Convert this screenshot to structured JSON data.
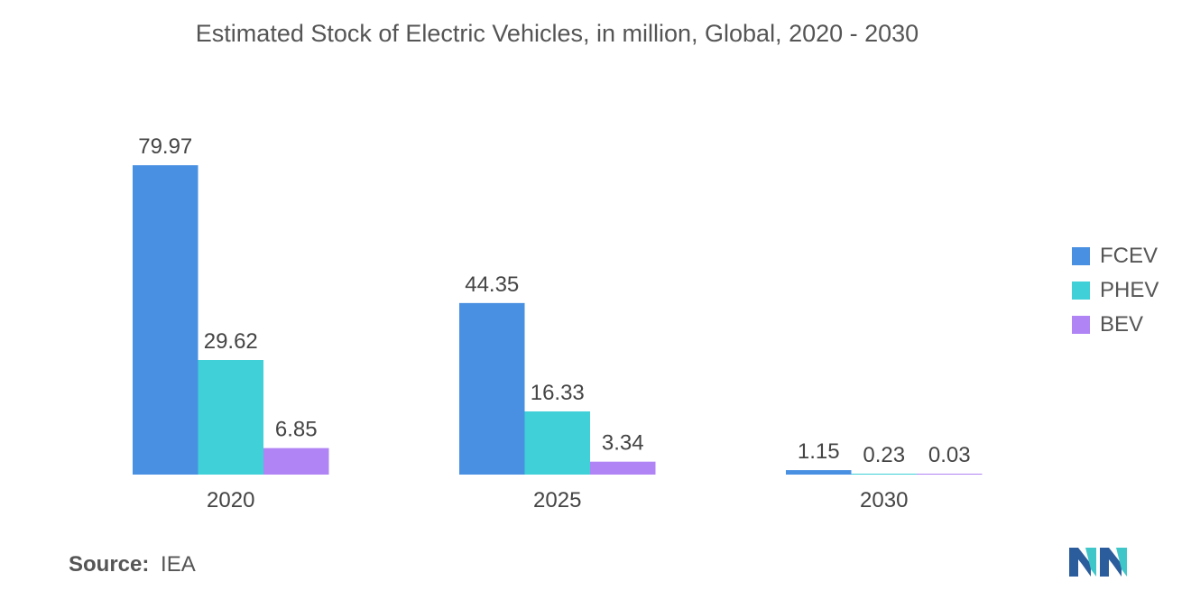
{
  "chart_data": {
    "type": "bar",
    "title": "Estimated Stock of Electric Vehicles, in million, Global, 2020 - 2030",
    "categories": [
      "2020",
      "2025",
      "2030"
    ],
    "series": [
      {
        "name": "FCEV",
        "values": [
          79.97,
          44.35,
          1.15
        ],
        "labels": [
          "79.97",
          "44.35",
          "1.15"
        ],
        "color": "#4a90e2"
      },
      {
        "name": "PHEV",
        "values": [
          29.62,
          16.33,
          0.23
        ],
        "labels": [
          "29.62",
          "16.33",
          "0.23"
        ],
        "color": "#3fd0d8"
      },
      {
        "name": "BEV",
        "values": [
          6.85,
          3.34,
          0.03
        ],
        "labels": [
          "6.85",
          "3.34",
          "0.03"
        ],
        "color": "#b084f5"
      }
    ],
    "ylim": [
      0,
      80
    ],
    "xlabel": "",
    "ylabel": "",
    "grid": false,
    "legend_position": "right"
  },
  "source": {
    "label": "Source:",
    "value": "IEA"
  },
  "logo": {
    "icon": "mordor-intelligence-logo-icon",
    "colors": [
      "#2b5d9c",
      "#3fc6c9"
    ]
  }
}
